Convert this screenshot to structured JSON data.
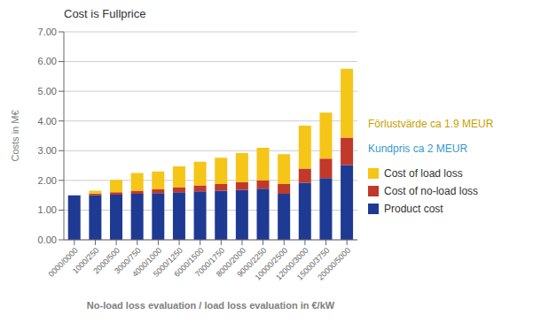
{
  "chart_data": {
    "type": "bar",
    "title": "Cost is Fullprice",
    "xlabel": "No-load loss evaluation / load loss evaluation in €/kW",
    "ylabel": "Costs in M€",
    "categories": [
      "0000/0000",
      "1000/250",
      "2000/500",
      "3000/750",
      "4000/1000",
      "5000/1250",
      "6000/1500",
      "7000/1750",
      "8000/2000",
      "9000/2250",
      "10000/2500",
      "12000/3000",
      "15000/3750",
      "20000/5000"
    ],
    "series": [
      {
        "name": "Product cost",
        "color": "#1F3A93",
        "values": [
          1.5,
          1.5,
          1.52,
          1.55,
          1.57,
          1.6,
          1.63,
          1.65,
          1.68,
          1.72,
          1.55,
          1.92,
          2.08,
          2.52
        ]
      },
      {
        "name": "Cost of no-load loss",
        "color": "#C0392B",
        "values": [
          0.0,
          0.06,
          0.08,
          0.1,
          0.13,
          0.17,
          0.2,
          0.23,
          0.26,
          0.28,
          0.33,
          0.48,
          0.65,
          0.92
        ]
      },
      {
        "name": "Cost of load loss",
        "color": "#F5C518",
        "values": [
          0.0,
          0.09,
          0.42,
          0.6,
          0.6,
          0.7,
          0.8,
          0.88,
          0.98,
          1.1,
          1.0,
          1.44,
          1.55,
          2.32
        ]
      }
    ],
    "stacked": true,
    "ylim": [
      0.0,
      7.0
    ],
    "yticks": [
      {
        "value": 0.0,
        "label": "0.00"
      },
      {
        "value": 1.0,
        "label": "1.00"
      },
      {
        "value": 2.0,
        "label": "2.00"
      },
      {
        "value": 3.0,
        "label": "3.00"
      },
      {
        "value": 4.0,
        "label": "4.00"
      },
      {
        "value": 5.0,
        "label": "5.00"
      },
      {
        "value": 6.0,
        "label": "6.00"
      },
      {
        "value": 7.0,
        "label": "7.00"
      }
    ],
    "grid": true,
    "legend": "right",
    "annotations": [
      {
        "text": "Förlustvärde ca 1.9 MEUR",
        "color": "#C8A000"
      },
      {
        "text": "Kundpris ca 2 MEUR",
        "color": "#3399CC"
      }
    ]
  }
}
